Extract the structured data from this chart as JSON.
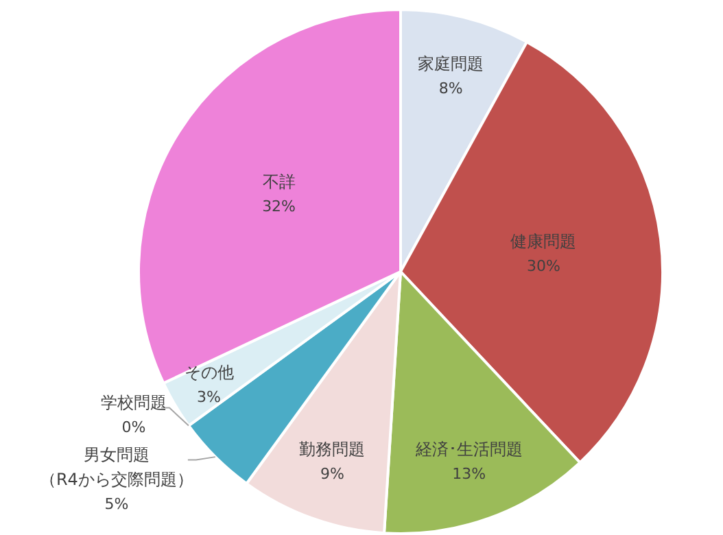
{
  "chart_data": {
    "type": "pie",
    "categories": [
      "家庭問題",
      "健康問題",
      "経済･生活問題",
      "勤務問題",
      "男女問題（R4から交際問題）",
      "学校問題",
      "その他",
      "不詳"
    ],
    "values": [
      8,
      30,
      13,
      9,
      5,
      0,
      3,
      32
    ],
    "colors": [
      "#dae3f0",
      "#c0504d",
      "#9bbb59",
      "#f2dcdb",
      "#4bacc6",
      "#b7dde8",
      "#dbeef4",
      "#ee82d9"
    ],
    "value_labels": [
      "8%",
      "30%",
      "13%",
      "9%",
      "5%",
      "0%",
      "3%",
      "32%"
    ]
  }
}
